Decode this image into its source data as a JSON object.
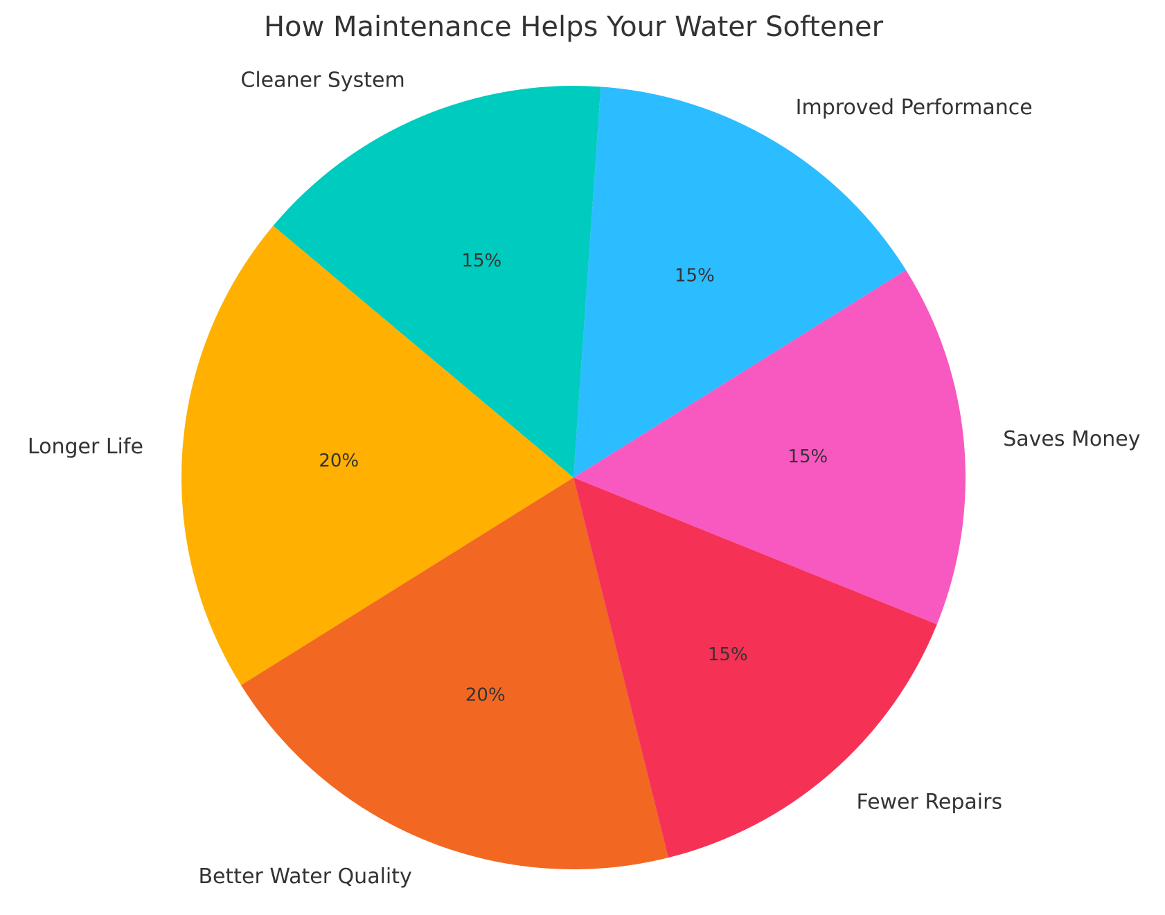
{
  "chart_data": {
    "type": "pie",
    "title": "How Maintenance Helps Your Water Softener",
    "categories": [
      "Cleaner System",
      "Longer Life",
      "Better Water Quality",
      "Fewer Repairs",
      "Saves Money",
      "Improved Performance"
    ],
    "values": [
      15,
      20,
      20,
      15,
      15,
      15
    ],
    "value_labels": [
      "15%",
      "20%",
      "20%",
      "15%",
      "15%",
      "15%"
    ],
    "colors": [
      "#00cbbf",
      "#ffb000",
      "#f26822",
      "#f53255",
      "#f859c0",
      "#2bbdff"
    ]
  }
}
